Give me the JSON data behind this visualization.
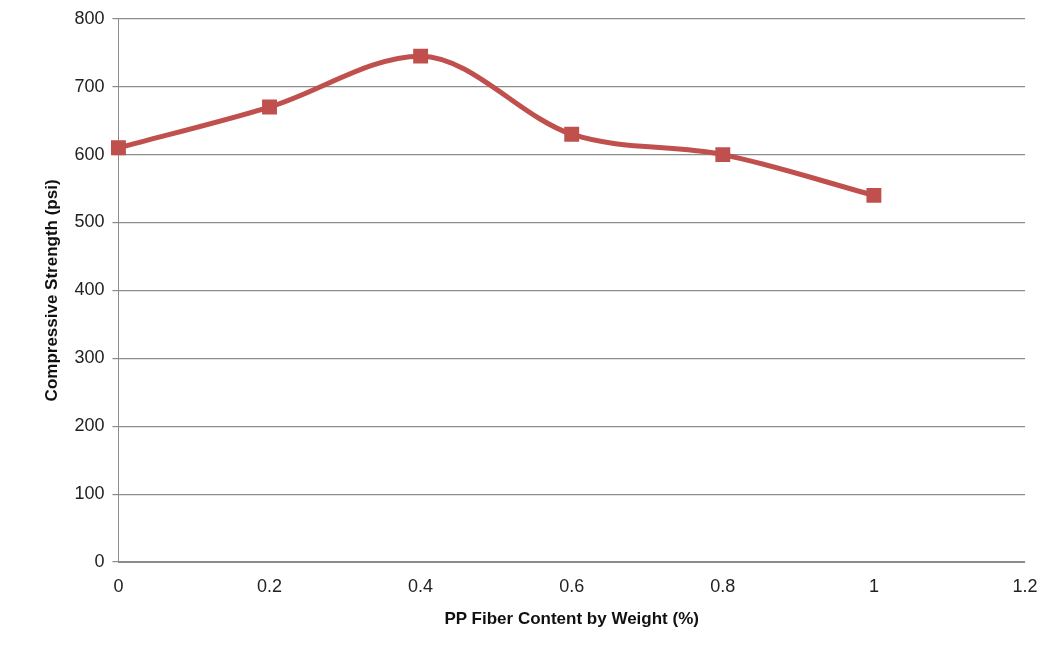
{
  "chart_data": {
    "type": "line",
    "xlabel": "PP Fiber Content by Weight (%)",
    "ylabel": "Compressive Strength (psi)",
    "x": [
      0,
      0.2,
      0.4,
      0.6,
      0.8,
      1
    ],
    "series": [
      {
        "color": "#c0504d",
        "values": [
          610,
          670,
          745,
          630,
          600,
          540
        ]
      }
    ],
    "xlim": [
      0,
      1.2
    ],
    "xticks": [
      0,
      0.2,
      0.4,
      0.6,
      0.8,
      1,
      1.2
    ],
    "ylim": [
      0,
      800
    ],
    "yticks": [
      0,
      100,
      200,
      300,
      400,
      500,
      600,
      700,
      800
    ],
    "grid": "y",
    "legend": false,
    "marker": "square",
    "line_style": "solid"
  }
}
